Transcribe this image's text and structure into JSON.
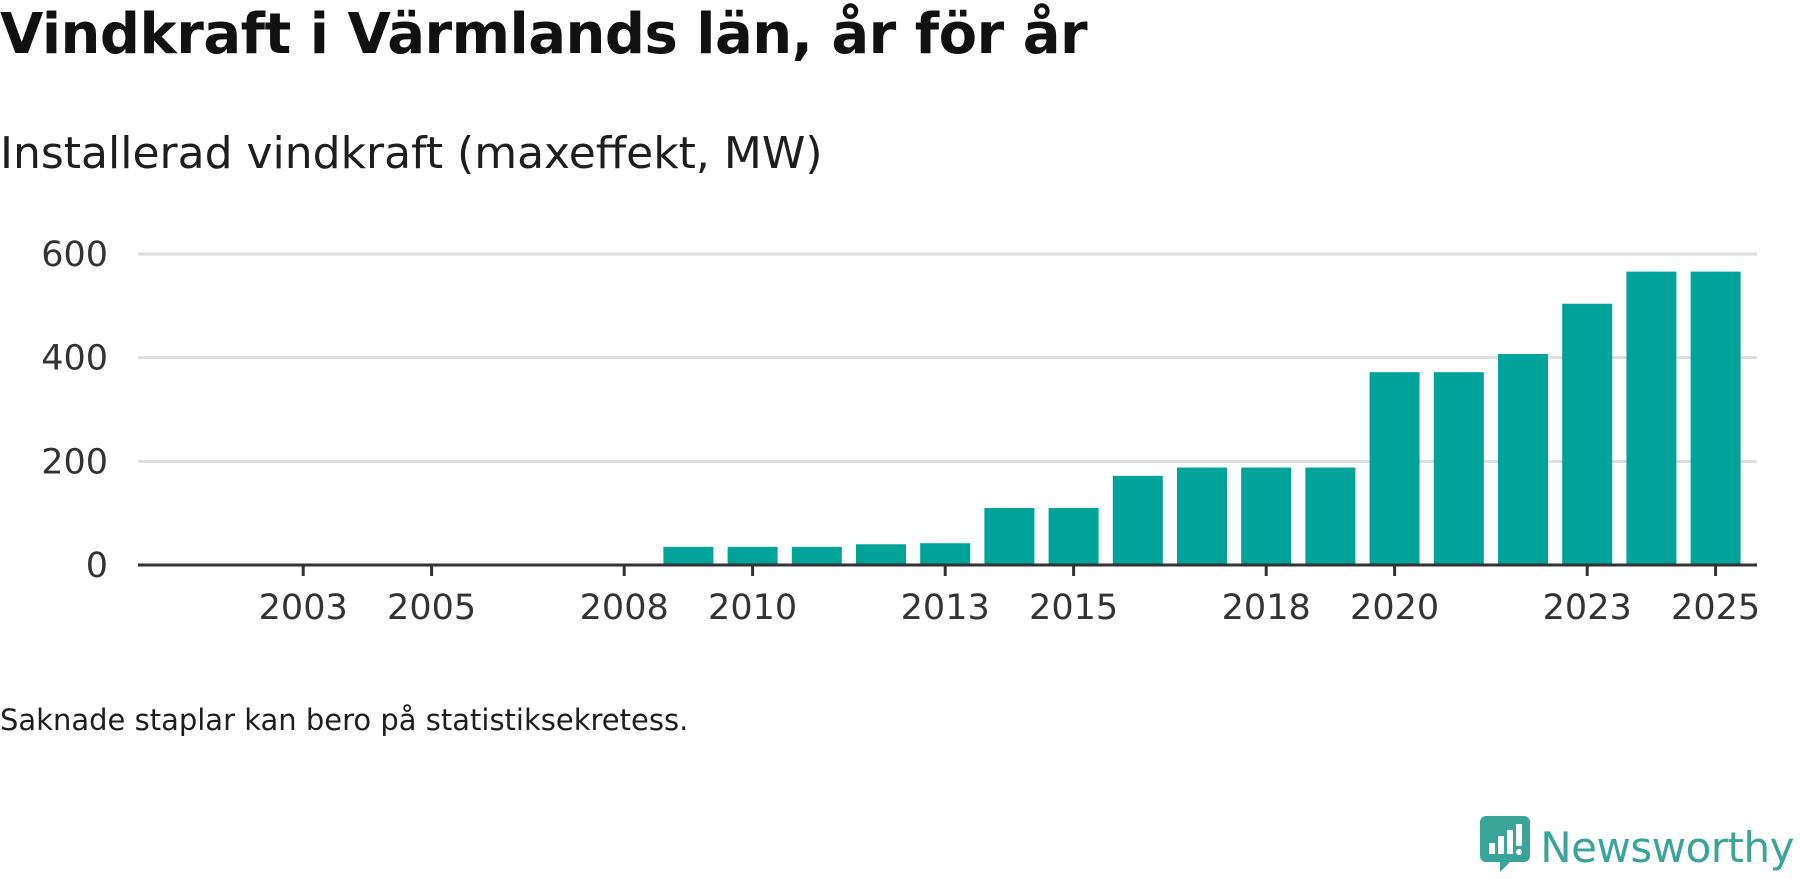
{
  "title": "Vindkraft i Värmlands län, år för år",
  "subtitle": "Installerad vindkraft (maxeffekt, MW)",
  "footnote": "Saknade staplar kan bero på statistiksekretess.",
  "brand": {
    "name": "Newsworthy",
    "icon": "newsworthy-logo-icon",
    "color": "#3aa39a"
  },
  "colors": {
    "bar": "#00a39a",
    "grid": "#dddddd",
    "axis": "#333333",
    "text": "#333333"
  },
  "chart_data": {
    "type": "bar",
    "title": "Vindkraft i Värmlands län, år för år",
    "subtitle": "Installerad vindkraft (maxeffekt, MW)",
    "xlabel": "",
    "ylabel": "",
    "categories": [
      2002,
      2003,
      2004,
      2005,
      2006,
      2007,
      2008,
      2009,
      2010,
      2011,
      2012,
      2013,
      2014,
      2015,
      2016,
      2017,
      2018,
      2019,
      2020,
      2021,
      2022,
      2023,
      2024,
      2025
    ],
    "values": [
      null,
      null,
      null,
      null,
      null,
      null,
      null,
      35,
      35,
      35,
      40,
      42,
      110,
      110,
      172,
      188,
      188,
      188,
      372,
      372,
      407,
      504,
      566,
      566
    ],
    "x_ticks": [
      "2003",
      "2005",
      "2008",
      "2010",
      "2013",
      "2015",
      "2018",
      "2020",
      "2023",
      "2025"
    ],
    "y_ticks": [
      "0",
      "200",
      "400",
      "600"
    ],
    "ylim": [
      0,
      600
    ],
    "grid": true,
    "legend": "none"
  }
}
